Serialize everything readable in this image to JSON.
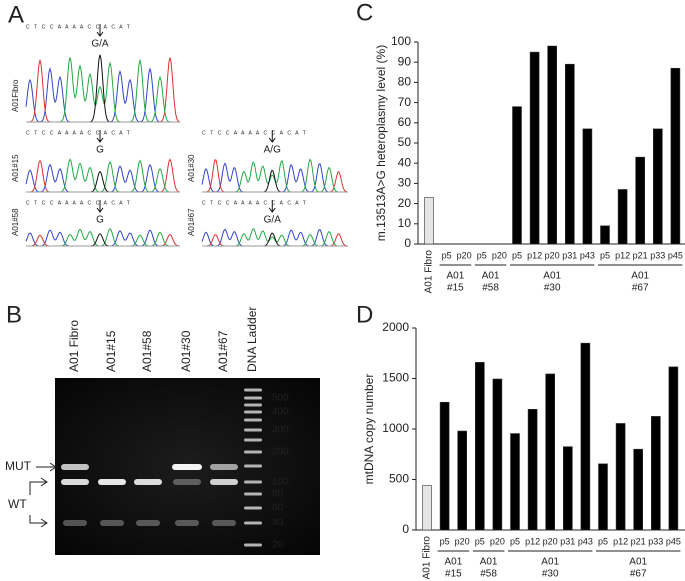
{
  "panel_a": {
    "letter": "A",
    "sequence": "C T C C A A A   A C C A C A T",
    "traces": [
      {
        "sample": "A01Fibro",
        "genotype": "G/A"
      },
      {
        "sample": "A01#15",
        "genotype": "G"
      },
      {
        "sample": "A01#30",
        "genotype": "A/G"
      },
      {
        "sample": "A01#58",
        "genotype": "G"
      },
      {
        "sample": "A01#67",
        "genotype": "G/A"
      }
    ]
  },
  "panel_b": {
    "letter": "B",
    "lanes": [
      "A01 Fibro",
      "A01#15",
      "A01#58",
      "A01#30",
      "A01#67",
      "DNA Ladder"
    ],
    "ladder": [
      500,
      400,
      300,
      200,
      100,
      80,
      60,
      40,
      20
    ],
    "mut": "MUT",
    "wt": "WT"
  },
  "panel_c": {
    "letter": "C"
  },
  "panel_d": {
    "letter": "D"
  },
  "chart_data": [
    {
      "type": "bar",
      "y_label": "m.13513A>G heteroplasmy level (%)",
      "ylim": [
        0,
        100
      ],
      "yticks": [
        0,
        10,
        20,
        30,
        40,
        50,
        60,
        70,
        80,
        90,
        100
      ],
      "color": "#000000",
      "control": {
        "category": "A01 Fibro",
        "value": 23,
        "color": "#e6e6e6"
      },
      "groups": [
        {
          "title": [
            "A01",
            "#15"
          ],
          "categories": [
            "p5",
            "p20"
          ],
          "values": [
            0,
            0
          ]
        },
        {
          "title": [
            "A01",
            "#58"
          ],
          "categories": [
            "p5",
            "p20"
          ],
          "values": [
            0,
            0
          ]
        },
        {
          "title": [
            "A01",
            "#30"
          ],
          "categories": [
            "p5",
            "p12",
            "p20",
            "p31",
            "p43"
          ],
          "values": [
            68,
            95,
            98,
            89,
            57
          ]
        },
        {
          "title": [
            "A01",
            "#67"
          ],
          "categories": [
            "p5",
            "p12",
            "p21",
            "p33",
            "p45"
          ],
          "values": [
            9,
            27,
            43,
            57,
            87
          ]
        }
      ]
    },
    {
      "type": "bar",
      "y_label": "mtDNA copy number",
      "ylim": [
        0,
        2000
      ],
      "yticks": [
        0,
        500,
        1000,
        1500,
        2000
      ],
      "color": "#000000",
      "control": {
        "category": "A01 Fibro",
        "value": 440,
        "color": "#e6e6e6"
      },
      "groups": [
        {
          "title": [
            "A01",
            "#15"
          ],
          "categories": [
            "p5",
            "p20"
          ],
          "values": [
            1265,
            980
          ]
        },
        {
          "title": [
            "A01",
            "#58"
          ],
          "categories": [
            "p5",
            "p20"
          ],
          "values": [
            1660,
            1495
          ]
        },
        {
          "title": [
            "A01",
            "#30"
          ],
          "categories": [
            "p5",
            "p12",
            "p20",
            "p31",
            "p43"
          ],
          "values": [
            955,
            1195,
            1545,
            825,
            1850
          ]
        },
        {
          "title": [
            "A01",
            "#67"
          ],
          "categories": [
            "p5",
            "p12",
            "p21",
            "p33",
            "p45"
          ],
          "values": [
            655,
            1055,
            800,
            1125,
            1615
          ]
        }
      ]
    }
  ]
}
